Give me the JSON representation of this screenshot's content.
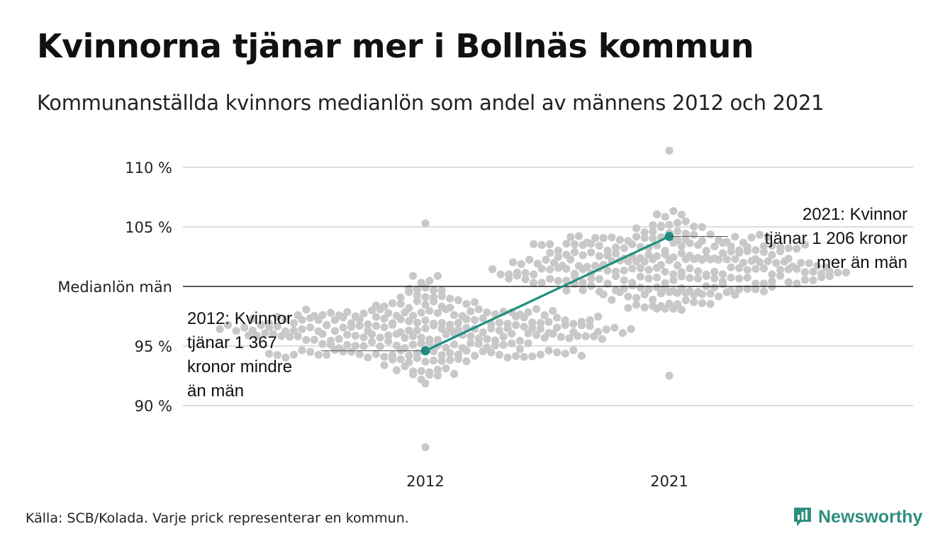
{
  "header": {
    "title": "Kvinnorna tjänar mer i Bollnäs kommun",
    "subtitle": "Kommunanställda kvinnors medianlön som andel av männens 2012 och 2021"
  },
  "footer": {
    "source": "Källa: SCB/Kolada. Varje prick representerar en kommun.",
    "brand": "Newsworthy"
  },
  "colors": {
    "dots": "#c8c8c8",
    "highlight": "#1e8f80",
    "gridline": "#dddddd",
    "reference_line": "#222222",
    "brand": "#2e8f7f"
  },
  "chart_data": {
    "type": "scatter",
    "subtype": "beeswarm",
    "categories": [
      "2012",
      "2021"
    ],
    "yticks": [
      {
        "value": 90,
        "label": "90 %"
      },
      {
        "value": 95,
        "label": "95 %"
      },
      {
        "value": 105,
        "label": "105 %"
      },
      {
        "value": 110,
        "label": "110 %"
      }
    ],
    "reference_line": {
      "value": 100,
      "label": "Medianlön män"
    },
    "ylim": [
      86.5,
      111.5
    ],
    "highlight": {
      "values": [
        94.6,
        104.2
      ],
      "annotations": [
        {
          "category": "2012",
          "lines": [
            "2012: Kvinnor",
            "tjänar 1 367",
            "kronor mindre",
            "än män"
          ]
        },
        {
          "category": "2021",
          "lines": [
            "2021: Kvinnor",
            "tjänar 1 206 kronor",
            "mer än män"
          ]
        }
      ]
    },
    "distribution": {
      "2012": {
        "median": 96.2,
        "sd": 2.4,
        "min": 86.5,
        "max": 105.3,
        "count": 290
      },
      "2021": {
        "median": 101.6,
        "sd": 2.6,
        "min": 92.5,
        "max": 111.4,
        "count": 290
      }
    }
  }
}
